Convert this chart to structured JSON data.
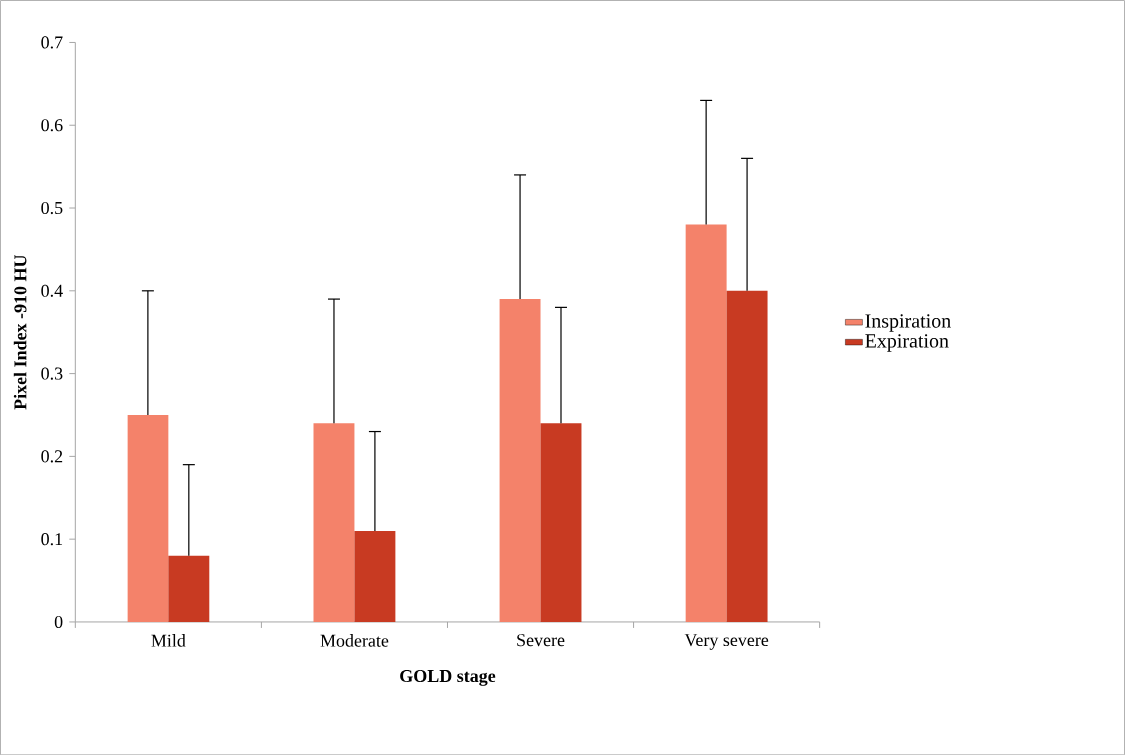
{
  "chart_data": {
    "type": "bar",
    "xlabel": "GOLD stage",
    "ylabel": "Pixel Index -910 HU",
    "categories": [
      "Mild",
      "Moderate",
      "Severe",
      "Very severe"
    ],
    "series": [
      {
        "name": "Inspiration",
        "color": "#f4826a",
        "values": [
          0.25,
          0.24,
          0.39,
          0.48
        ],
        "errors": [
          [
            0.25,
            0.4
          ],
          [
            0.24,
            0.39
          ],
          [
            0.39,
            0.54
          ],
          [
            0.48,
            0.63
          ]
        ]
      },
      {
        "name": "Expiration",
        "color": "#c83a22",
        "values": [
          0.08,
          0.11,
          0.24,
          0.4
        ],
        "errors": [
          [
            0.08,
            0.19
          ],
          [
            0.11,
            0.23
          ],
          [
            0.24,
            0.38
          ],
          [
            0.4,
            0.56
          ]
        ]
      }
    ],
    "ylim": [
      0,
      0.7
    ],
    "yticks": [
      0,
      0.1,
      0.2,
      0.3,
      0.4,
      0.5,
      0.6,
      0.7
    ],
    "legend": "right",
    "grid": false
  }
}
